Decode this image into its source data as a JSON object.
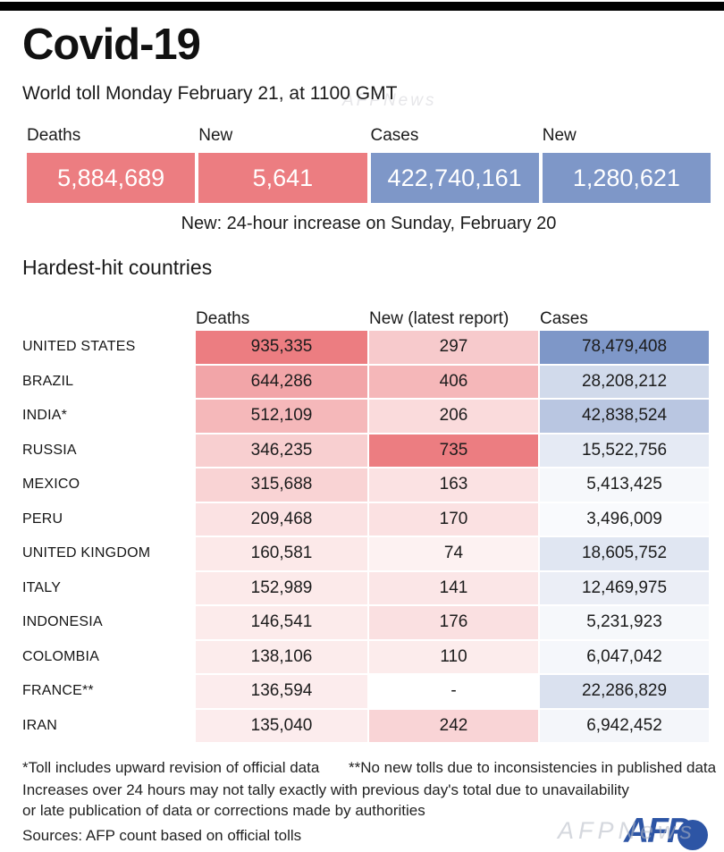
{
  "chart_data": {
    "type": "table",
    "title": "Covid-19",
    "subtitle": "World toll Monday February 21, at 1100 GMT",
    "summary": {
      "cells": [
        {
          "label": "Deaths",
          "value": "5,884,689",
          "color_type": "deaths"
        },
        {
          "label": "New",
          "value": "5,641",
          "color_type": "deaths"
        },
        {
          "label": "Cases",
          "value": "422,740,161",
          "color_type": "cases"
        },
        {
          "label": "New",
          "value": "1,280,621",
          "color_type": "cases"
        }
      ],
      "note": "New: 24-hour increase on Sunday, February 20"
    },
    "section_title": "Hardest-hit countries",
    "columns": [
      "Deaths",
      "New (latest report)",
      "Cases"
    ],
    "rows": [
      {
        "country": "UNITED STATES",
        "deaths": "935,335",
        "new": "297",
        "cases": "78,479,408"
      },
      {
        "country": "BRAZIL",
        "deaths": "644,286",
        "new": "406",
        "cases": "28,208,212"
      },
      {
        "country": "INDIA*",
        "deaths": "512,109",
        "new": "206",
        "cases": "42,838,524"
      },
      {
        "country": "RUSSIA",
        "deaths": "346,235",
        "new": "735",
        "cases": "15,522,756"
      },
      {
        "country": "MEXICO",
        "deaths": "315,688",
        "new": "163",
        "cases": "5,413,425"
      },
      {
        "country": "PERU",
        "deaths": "209,468",
        "new": "170",
        "cases": "3,496,009"
      },
      {
        "country": "UNITED KINGDOM",
        "deaths": "160,581",
        "new": "74",
        "cases": "18,605,752"
      },
      {
        "country": "ITALY",
        "deaths": "152,989",
        "new": "141",
        "cases": "12,469,975"
      },
      {
        "country": "INDONESIA",
        "deaths": "146,541",
        "new": "176",
        "cases": "5,231,923"
      },
      {
        "country": "COLOMBIA",
        "deaths": "138,106",
        "new": "110",
        "cases": "6,047,042"
      },
      {
        "country": "FRANCE**",
        "deaths": "136,594",
        "new": "-",
        "cases": "22,286,829"
      },
      {
        "country": "IRAN",
        "deaths": "135,040",
        "new": "242",
        "cases": "6,942,452"
      }
    ],
    "colors": {
      "deaths_red": "#ec7d81",
      "cases_blue": "#7e97c8"
    },
    "footnotes": {
      "asterisk_note": "*Toll includes upward revision of official data",
      "double_asterisk_note": "**No new tolls due to inconsistencies in published data",
      "disclaimer_line1": "Increases over 24 hours may not tally exactly with previous day's total due to unavailability",
      "disclaimer_line2": "or late publication of data or corrections made by authorities",
      "sources": "Sources: AFP count based on official tolls"
    },
    "branding": {
      "logo": "AFP",
      "watermark": "AFPNews"
    }
  }
}
